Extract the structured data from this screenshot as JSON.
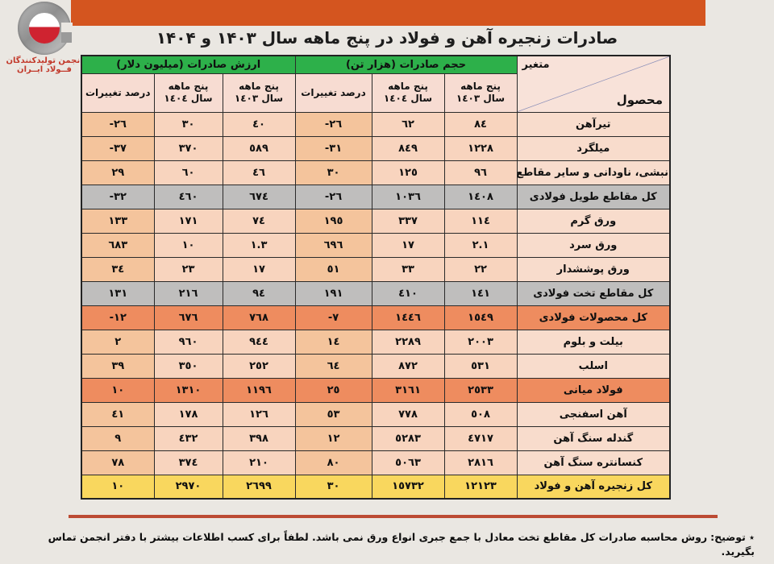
{
  "logo": {
    "org_line1": "انجمن تولیدکنندگان",
    "org_line2": "فــولاد ایــران"
  },
  "title": "صادرات زنجیره آهن و فولاد در پنج ماهه سال ۱۴۰۳ و ۱۴۰۴",
  "table": {
    "corner": {
      "top": "متغیر",
      "bottom": "محصول"
    },
    "group_headers": {
      "volume": "حجم صادرات (هزار تن)",
      "value": "ارزش صادرات (میلیون دلار)"
    },
    "sub_headers": [
      {
        "l1": "پنج ماهه",
        "l2": "سال ١٤٠٣"
      },
      {
        "l1": "پنج ماهه",
        "l2": "سال ١٤٠٤"
      },
      {
        "l1": "درصد تغییرات",
        "l2": ""
      },
      {
        "l1": "پنج ماهه",
        "l2": "سال ١٤٠٣"
      },
      {
        "l1": "پنج ماهه",
        "l2": "سال ١٤٠٤"
      },
      {
        "l1": "درصد تغییرات",
        "l2": ""
      }
    ],
    "rows": [
      {
        "product": "تیرآهن",
        "vol_1403": "٨٤",
        "vol_1404": "٦٢",
        "vol_change": "-٢٦",
        "val_1403": "٤٠",
        "val_1404": "٣٠",
        "val_change": "-٢٦",
        "style": "normal"
      },
      {
        "product": "میلگرد",
        "vol_1403": "١٢٢٨",
        "vol_1404": "٨٤٩",
        "vol_change": "-٣١",
        "val_1403": "٥٨٩",
        "val_1404": "٣٧٠",
        "val_change": "-٣٧",
        "style": "normal"
      },
      {
        "product": "نبشی، ناودانی و سایر مقاطع",
        "vol_1403": "٩٦",
        "vol_1404": "١٢٥",
        "vol_change": "٣٠",
        "val_1403": "٤٦",
        "val_1404": "٦٠",
        "val_change": "٢٩",
        "style": "normal"
      },
      {
        "product": "کل مقاطع طویل فولادی",
        "vol_1403": "١٤٠٨",
        "vol_1404": "١٠٣٦",
        "vol_change": "-٢٦",
        "val_1403": "٦٧٤",
        "val_1404": "٤٦٠",
        "val_change": "-٣٢",
        "style": "gray"
      },
      {
        "product": "ورق گرم",
        "vol_1403": "١١٤",
        "vol_1404": "٣٣٧",
        "vol_change": "١٩٥",
        "val_1403": "٧٤",
        "val_1404": "١٧١",
        "val_change": "١٣٣",
        "style": "normal"
      },
      {
        "product": "ورق سرد",
        "vol_1403": "٢.١",
        "vol_1404": "١٧",
        "vol_change": "٦٩٦",
        "val_1403": "١.٣",
        "val_1404": "١٠",
        "val_change": "٦٨٣",
        "style": "normal"
      },
      {
        "product": "ورق پوششدار",
        "vol_1403": "٢٢",
        "vol_1404": "٣٣",
        "vol_change": "٥١",
        "val_1403": "١٧",
        "val_1404": "٢٣",
        "val_change": "٣٤",
        "style": "normal"
      },
      {
        "product": "کل مقاطع تخت فولادی",
        "vol_1403": "١٤١",
        "vol_1404": "٤١٠",
        "vol_change": "١٩١",
        "val_1403": "٩٤",
        "val_1404": "٢١٦",
        "val_change": "١٣١",
        "style": "gray"
      },
      {
        "product": "کل محصولات فولادی",
        "vol_1403": "١٥٤٩",
        "vol_1404": "١٤٤٦",
        "vol_change": "-٧",
        "val_1403": "٧٦٨",
        "val_1404": "٦٧٦",
        "val_change": "-١٢",
        "style": "orange"
      },
      {
        "product": "بیلت و بلوم",
        "vol_1403": "٢٠٠٣",
        "vol_1404": "٢٢٨٩",
        "vol_change": "١٤",
        "val_1403": "٩٤٤",
        "val_1404": "٩٦٠",
        "val_change": "٢",
        "style": "normal"
      },
      {
        "product": "اسلب",
        "vol_1403": "٥٣١",
        "vol_1404": "٨٧٢",
        "vol_change": "٦٤",
        "val_1403": "٢٥٢",
        "val_1404": "٣٥٠",
        "val_change": "٣٩",
        "style": "normal"
      },
      {
        "product": "فولاد میانی",
        "vol_1403": "٢٥٣٣",
        "vol_1404": "٣١٦١",
        "vol_change": "٢٥",
        "val_1403": "١١٩٦",
        "val_1404": "١٣١٠",
        "val_change": "١٠",
        "style": "orange"
      },
      {
        "product": "آهن اسفنجی",
        "vol_1403": "٥٠٨",
        "vol_1404": "٧٧٨",
        "vol_change": "٥٣",
        "val_1403": "١٢٦",
        "val_1404": "١٧٨",
        "val_change": "٤١",
        "style": "normal"
      },
      {
        "product": "گندله سنگ آهن",
        "vol_1403": "٤٧١٧",
        "vol_1404": "٥٢٨٣",
        "vol_change": "١٢",
        "val_1403": "٣٩٨",
        "val_1404": "٤٣٢",
        "val_change": "٩",
        "style": "normal"
      },
      {
        "product": "کنسانتره سنگ آهن",
        "vol_1403": "٢٨١٦",
        "vol_1404": "٥٠٦٣",
        "vol_change": "٨٠",
        "val_1403": "٢١٠",
        "val_1404": "٣٧٤",
        "val_change": "٧٨",
        "style": "normal"
      },
      {
        "product": "کل زنجیره آهن و فولاد",
        "vol_1403": "١٢١٢٣",
        "vol_1404": "١٥٧٣٢",
        "vol_change": "٣٠",
        "val_1403": "٢٦٩٩",
        "val_1404": "٢٩٧٠",
        "val_change": "١٠",
        "style": "yellow"
      }
    ]
  },
  "footnote": {
    "label": "٭ توضیح:",
    "text": "روش محاسبه صادرات کل مقاطع تخت معادل با جمع جبری انواع ورق نمی باشد. لطفاً برای کسب اطلاعات بیشتر با دفتر انجمن تماس بگیرید."
  },
  "colors": {
    "banner": "#d4551f",
    "header_green": "#2db04a",
    "subheader_pink": "#f7dcd2",
    "cell_value": "#f8d4be",
    "cell_percent": "#f4c49c",
    "cell_product": "#f8dccc",
    "row_gray": "#bfbebd",
    "row_orange": "#ee8c5f",
    "row_yellow": "#f9d75e",
    "divider_red": "#bc4b33",
    "logo_red": "#c2392b"
  }
}
